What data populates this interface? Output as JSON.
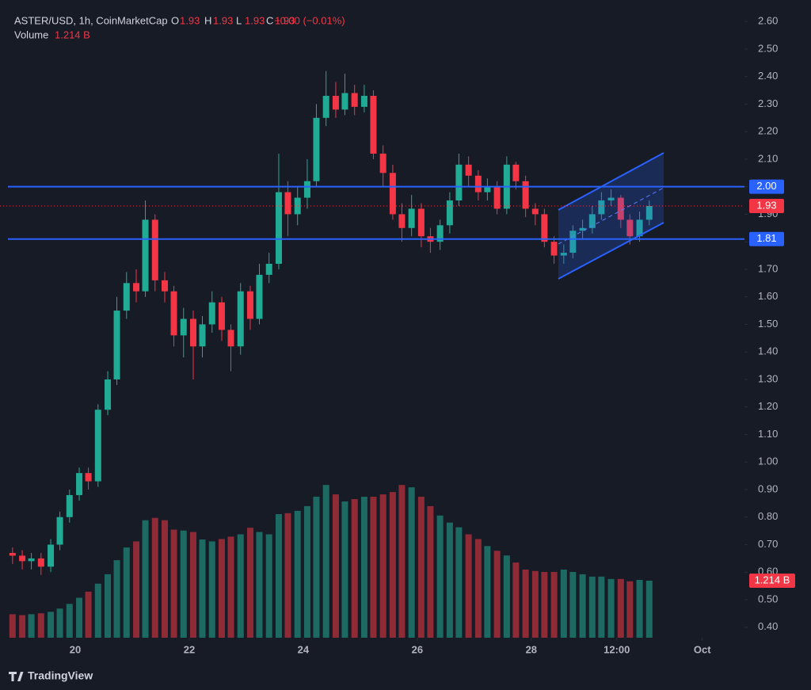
{
  "chart_data": {
    "type": "candlestick",
    "symbol": "ASTER/USD, 1h, CoinMarketCap",
    "legend": [
      {
        "key": "O",
        "value": "1.93"
      },
      {
        "key": "H",
        "value": "1.93"
      },
      {
        "key": "L",
        "value": "1.93"
      },
      {
        "key": "C",
        "value": "1.93"
      }
    ],
    "change": "−0.00 (−0.01%)",
    "volume_title": "Volume",
    "volume_label": "1.214 B",
    "brand": "TradingView",
    "up_color": "#22ab94",
    "down_color": "#f23645",
    "grid": false,
    "x": [
      18.9,
      19.07,
      19.23,
      19.4,
      19.57,
      19.73,
      19.9,
      20.07,
      20.23,
      20.4,
      20.57,
      20.73,
      20.9,
      21.07,
      21.23,
      21.4,
      21.57,
      21.73,
      21.9,
      22.07,
      22.23,
      22.4,
      22.57,
      22.73,
      22.9,
      23.07,
      23.23,
      23.4,
      23.57,
      23.73,
      23.9,
      24.07,
      24.23,
      24.4,
      24.57,
      24.73,
      24.9,
      25.07,
      25.23,
      25.4,
      25.57,
      25.73,
      25.9,
      26.07,
      26.23,
      26.4,
      26.57,
      26.73,
      26.9,
      27.07,
      27.23,
      27.4,
      27.57,
      27.73,
      27.9,
      28.07,
      28.23,
      28.4,
      28.57,
      28.73,
      28.9,
      29.07,
      29.23,
      29.4,
      29.57,
      29.73,
      29.9,
      30.07
    ],
    "open": [
      0.67,
      0.66,
      0.64,
      0.65,
      0.62,
      0.7,
      0.8,
      0.88,
      0.96,
      0.93,
      1.19,
      1.3,
      1.55,
      1.65,
      1.62,
      1.88,
      1.66,
      1.62,
      1.46,
      1.52,
      1.42,
      1.5,
      1.58,
      1.48,
      1.42,
      1.62,
      1.52,
      1.68,
      1.72,
      1.98,
      1.9,
      1.96,
      2.02,
      2.25,
      2.33,
      2.28,
      2.34,
      2.29,
      2.33,
      2.12,
      2.05,
      1.9,
      1.85,
      1.92,
      1.82,
      1.8,
      1.86,
      1.95,
      2.08,
      2.04,
      1.98,
      2.0,
      1.92,
      2.08,
      2.02,
      1.92,
      1.9,
      1.8,
      1.75,
      1.76,
      1.84,
      1.85,
      1.9,
      1.95,
      1.96,
      1.88,
      1.82,
      1.88
    ],
    "high": [
      0.69,
      0.68,
      0.67,
      0.67,
      0.72,
      0.82,
      0.9,
      0.98,
      0.98,
      1.21,
      1.33,
      1.6,
      1.69,
      1.7,
      1.95,
      1.9,
      1.69,
      1.64,
      1.56,
      1.55,
      1.53,
      1.62,
      1.6,
      1.5,
      1.65,
      1.64,
      1.72,
      1.76,
      2.12,
      2.02,
      2.0,
      2.1,
      2.3,
      2.42,
      2.38,
      2.41,
      2.37,
      2.37,
      2.35,
      2.15,
      2.08,
      1.94,
      1.97,
      1.94,
      1.85,
      1.88,
      1.98,
      2.12,
      2.11,
      2.06,
      2.03,
      2.02,
      2.11,
      2.09,
      2.04,
      1.94,
      1.92,
      1.82,
      1.79,
      1.86,
      1.88,
      1.93,
      1.98,
      1.99,
      1.97,
      1.9,
      1.91,
      1.95
    ],
    "low": [
      0.63,
      0.61,
      0.61,
      0.59,
      0.6,
      0.68,
      0.78,
      0.86,
      0.9,
      0.91,
      1.17,
      1.28,
      1.52,
      1.58,
      1.6,
      1.62,
      1.58,
      1.42,
      1.38,
      1.3,
      1.38,
      1.47,
      1.44,
      1.33,
      1.39,
      1.48,
      1.5,
      1.65,
      1.7,
      1.82,
      1.86,
      1.92,
      2.0,
      2.22,
      2.25,
      2.26,
      2.26,
      2.27,
      2.1,
      2.0,
      1.88,
      1.8,
      1.82,
      1.78,
      1.76,
      1.77,
      1.83,
      1.93,
      2.0,
      1.95,
      1.95,
      1.9,
      1.9,
      1.99,
      1.89,
      1.86,
      1.78,
      1.72,
      1.72,
      1.74,
      1.81,
      1.83,
      1.88,
      1.93,
      1.85,
      1.79,
      1.8,
      1.86
    ],
    "close": [
      0.66,
      0.64,
      0.65,
      0.62,
      0.7,
      0.8,
      0.88,
      0.96,
      0.93,
      1.19,
      1.3,
      1.55,
      1.65,
      1.62,
      1.88,
      1.66,
      1.62,
      1.46,
      1.52,
      1.42,
      1.5,
      1.58,
      1.48,
      1.42,
      1.62,
      1.52,
      1.68,
      1.72,
      1.98,
      1.9,
      1.96,
      2.02,
      2.25,
      2.33,
      2.28,
      2.34,
      2.29,
      2.33,
      2.12,
      2.05,
      1.9,
      1.85,
      1.92,
      1.82,
      1.8,
      1.86,
      1.95,
      2.08,
      2.04,
      1.98,
      2.0,
      1.92,
      2.08,
      2.02,
      1.92,
      1.9,
      1.8,
      1.75,
      1.76,
      1.84,
      1.85,
      1.9,
      1.95,
      1.96,
      1.88,
      1.82,
      1.88,
      1.93
    ],
    "volume": [
      0.5,
      0.48,
      0.5,
      0.52,
      0.55,
      0.62,
      0.72,
      0.85,
      0.98,
      1.15,
      1.35,
      1.65,
      1.92,
      2.05,
      2.5,
      2.55,
      2.5,
      2.3,
      2.28,
      2.25,
      2.09,
      2.05,
      2.1,
      2.15,
      2.2,
      2.34,
      2.25,
      2.2,
      2.63,
      2.65,
      2.7,
      2.8,
      3.0,
      3.25,
      3.05,
      2.9,
      2.95,
      3.0,
      3.0,
      3.05,
      3.1,
      3.25,
      3.2,
      3.0,
      2.8,
      2.6,
      2.45,
      2.35,
      2.2,
      2.1,
      1.95,
      1.85,
      1.75,
      1.6,
      1.45,
      1.42,
      1.4,
      1.4,
      1.45,
      1.4,
      1.35,
      1.3,
      1.3,
      1.25,
      1.25,
      1.2,
      1.23,
      1.214
    ],
    "volume_ylim": [
      0,
      13.57
    ],
    "xlim": [
      18.68,
      31.74
    ],
    "xticks": [
      20,
      22,
      24,
      26,
      28,
      {
        "value": 29.5,
        "label": "12:00"
      },
      {
        "value": 31,
        "label": "Oct"
      }
    ],
    "ylim": [
      0.362,
      2.678
    ],
    "yticks": [
      {
        "value": 0.4,
        "label": "0.40"
      },
      {
        "value": 0.5,
        "label": "0.50"
      },
      {
        "value": 0.6,
        "label": "0.60"
      },
      {
        "value": 0.7,
        "label": "0.70"
      },
      {
        "value": 0.8,
        "label": "0.80"
      },
      {
        "value": 0.9,
        "label": "0.90"
      },
      {
        "value": 1.0,
        "label": "1.00"
      },
      {
        "value": 1.1,
        "label": "1.10"
      },
      {
        "value": 1.2,
        "label": "1.20"
      },
      {
        "value": 1.3,
        "label": "1.30"
      },
      {
        "value": 1.4,
        "label": "1.40"
      },
      {
        "value": 1.5,
        "label": "1.50"
      },
      {
        "value": 1.6,
        "label": "1.60"
      },
      {
        "value": 1.7,
        "label": "1.70"
      },
      {
        "value": 1.8,
        "label": "1.80"
      },
      {
        "value": 1.9,
        "label": "1.90"
      },
      {
        "value": 2.0,
        "label": "2.00"
      },
      {
        "value": 2.1,
        "label": "2.10"
      },
      {
        "value": 2.2,
        "label": "2.20"
      },
      {
        "value": 2.3,
        "label": "2.30"
      },
      {
        "value": 2.4,
        "label": "2.40"
      },
      {
        "value": 2.5,
        "label": "2.50"
      },
      {
        "value": 2.6,
        "label": "2.60"
      }
    ],
    "levels": [
      {
        "value": 2.0,
        "label": "2.00",
        "color": "#2962ff"
      },
      {
        "value": 1.81,
        "label": "1.81",
        "color": "#2962ff"
      }
    ],
    "last_price": {
      "value": 1.93,
      "label": "1.93",
      "color": "#f23645"
    }
  }
}
